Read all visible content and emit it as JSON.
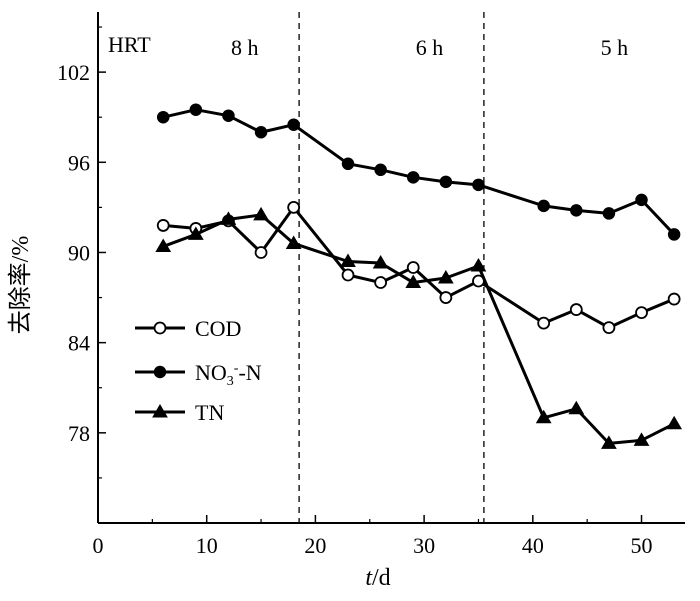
{
  "chart_data": {
    "type": "line",
    "xlabel_var": "t",
    "xlabel_unit": "/d",
    "ylabel": "去除率/%",
    "xlim": [
      0,
      54
    ],
    "ylim": [
      72,
      106
    ],
    "xticks": [
      0,
      10,
      20,
      30,
      40,
      50
    ],
    "yticks": [
      78,
      84,
      90,
      96,
      102
    ],
    "hrt_label": "HRT",
    "phases": [
      {
        "label": "8 h",
        "x_center": 13.5
      },
      {
        "label": "6 h",
        "x_center": 30.5
      },
      {
        "label": "5 h",
        "x_center": 47.5
      }
    ],
    "phase_boundaries": [
      18.5,
      35.5
    ],
    "legend": {
      "placement": "bottom-left",
      "entries": [
        {
          "label": "COD",
          "marker": "open-circle"
        },
        {
          "label_main": "NO",
          "label_sub": "3",
          "label_sup": "-",
          "label_tail": "-N",
          "marker": "filled-circle"
        },
        {
          "label": "TN",
          "marker": "filled-triangle"
        }
      ]
    },
    "series": [
      {
        "marker": "open-circle",
        "x": [
          6,
          9,
          12,
          15,
          18,
          23,
          26,
          29,
          32,
          35,
          41,
          44,
          47,
          50,
          53
        ],
        "y": [
          91.8,
          91.6,
          92.1,
          90.0,
          93.0,
          88.5,
          88.0,
          89.0,
          87.0,
          88.1,
          85.3,
          86.2,
          85.0,
          86.0,
          86.9
        ]
      },
      {
        "marker": "filled-circle",
        "x": [
          6,
          9,
          12,
          15,
          18,
          23,
          26,
          29,
          32,
          35,
          41,
          44,
          47,
          50,
          53
        ],
        "y": [
          99.0,
          99.5,
          99.1,
          98.0,
          98.5,
          95.9,
          95.5,
          95.0,
          94.7,
          94.5,
          93.1,
          92.8,
          92.6,
          93.5,
          91.2
        ]
      },
      {
        "marker": "filled-triangle",
        "x": [
          6,
          9,
          12,
          15,
          18,
          23,
          26,
          29,
          32,
          35,
          41,
          44,
          47,
          50,
          53
        ],
        "y": [
          90.4,
          91.2,
          92.2,
          92.5,
          90.6,
          89.4,
          89.3,
          88.0,
          88.3,
          89.1,
          79.0,
          79.6,
          77.3,
          77.5,
          78.6
        ]
      }
    ]
  }
}
